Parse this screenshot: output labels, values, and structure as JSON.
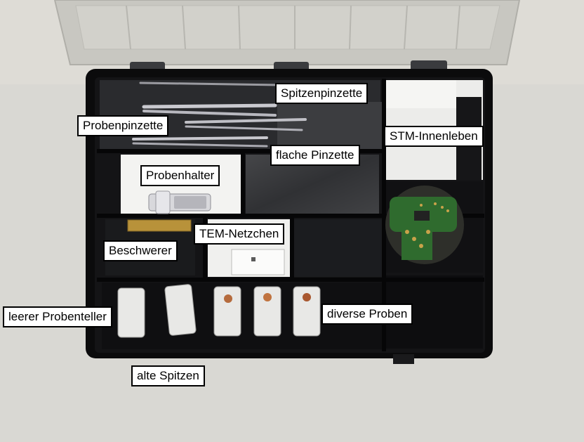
{
  "labels": {
    "spitzenpinzette": "Spitzenpinzette",
    "probenpinzette": "Probenpinzette",
    "stm_innenleben": "STM-Innenleben",
    "flache_pinzette": "flache Pinzette",
    "probenhalter": "Probenhalter",
    "tem_netzchen": "TEM-Netzchen",
    "beschwerer": "Beschwerer",
    "leerer_probenteller": "leerer Probenteller",
    "diverse_proben": "diverse Proben",
    "alte_spitzen": "alte Spitzen"
  },
  "colors": {
    "background": "#d9d8d3",
    "case": "#0b0b0c",
    "lid": "#c9c8c2",
    "pcb": "#2f6b2e",
    "label_bg": "#ffffff",
    "label_border": "#000000"
  }
}
